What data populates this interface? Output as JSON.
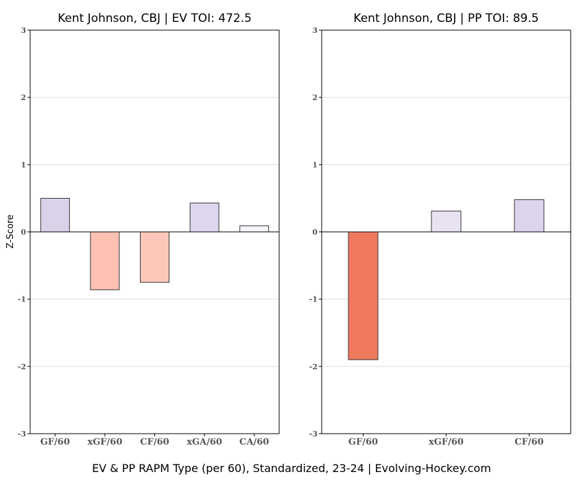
{
  "footer": "EV & PP RAPM Type (per 60), Standardized, 23-24    |    Evolving-Hockey.com",
  "chart_data": [
    {
      "type": "bar",
      "title": "Kent Johnson, CBJ  |  EV TOI: 472.5",
      "ylabel": "Z-Score",
      "ylim": [
        -3,
        3
      ],
      "yticks": [
        -3,
        -2,
        -1,
        0,
        1,
        2,
        3
      ],
      "grid": true,
      "categories": [
        "GF/60",
        "xGF/60",
        "CF/60",
        "xGA/60",
        "CA/60"
      ],
      "values": [
        0.5,
        -0.86,
        -0.75,
        0.43,
        0.09
      ],
      "colors": [
        "#dad2e8",
        "#fdc1b2",
        "#fdc7b9",
        "#ded6ee",
        "#f7f5fb"
      ]
    },
    {
      "type": "bar",
      "title": "Kent Johnson, CBJ  |  PP TOI: 89.5",
      "ylabel": "",
      "ylim": [
        -3,
        3
      ],
      "yticks": [
        -3,
        -2,
        -1,
        0,
        1,
        2,
        3
      ],
      "grid": true,
      "categories": [
        "GF/60",
        "xGF/60",
        "CF/60"
      ],
      "values": [
        -1.9,
        0.31,
        0.48
      ],
      "colors": [
        "#ef7a5e",
        "#e8e2f2",
        "#dcd4ec"
      ]
    }
  ]
}
